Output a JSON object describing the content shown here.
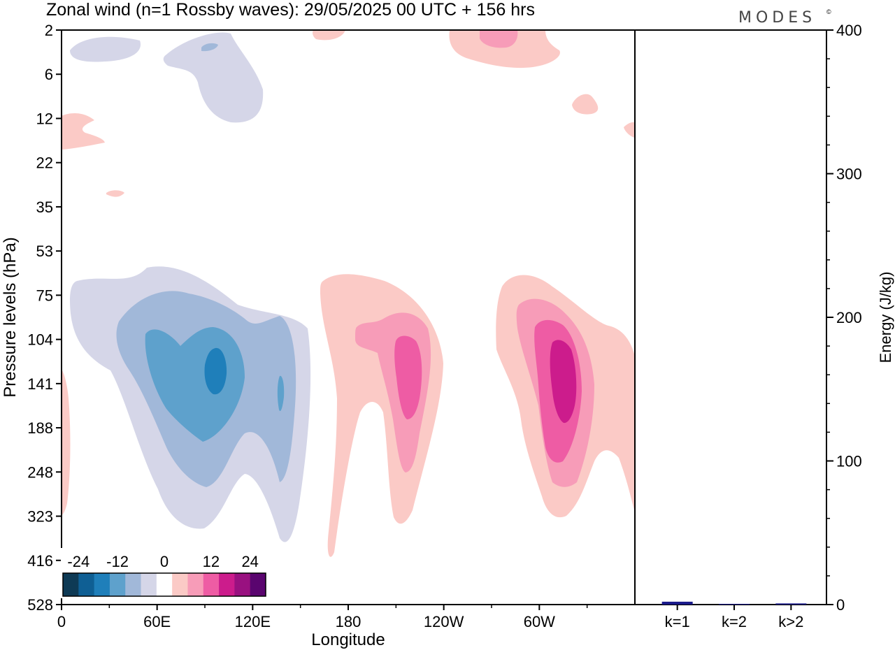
{
  "header": {
    "title": "Zonal wind (n=1 Rossby waves):  29/05/2025  00 UTC  + 156 hrs",
    "brand": "MODES",
    "brand_mark": "©"
  },
  "chart_data": [
    {
      "type": "contour",
      "xlabel": "Longitude",
      "ylabel": "Pressure levels (hPa)",
      "x_ticks": [
        "0",
        "60E",
        "120E",
        "180",
        "120W",
        "60W"
      ],
      "y_ticks": [
        "2",
        "6",
        "12",
        "22",
        "35",
        "53",
        "75",
        "104",
        "141",
        "188",
        "248",
        "323",
        "416",
        "528"
      ],
      "x_range": [
        0,
        360
      ],
      "colorbar": {
        "tick_labels": [
          "-24",
          "-12",
          "0",
          "12",
          "24"
        ],
        "colors": [
          "#0e3a55",
          "#0f5f94",
          "#1f7fba",
          "#5ea1cc",
          "#a1b8d9",
          "#d5d6e8",
          "#ffffff",
          "#fbcac6",
          "#f79cb8",
          "#ee5ca4",
          "#cc1c8c",
          "#991180",
          "#5a056f"
        ]
      },
      "features": [
        {
          "sign": "negative",
          "lon_center": 95,
          "p_center_hPa": 141,
          "max_abs_level": "≈20"
        },
        {
          "sign": "positive",
          "lon_center": 213,
          "p_center_hPa": 141,
          "max_abs_level": "≈12"
        },
        {
          "sign": "positive",
          "lon_center": 310,
          "p_center_hPa": 141,
          "max_abs_level": "≈16"
        },
        {
          "sign": "negative",
          "lon_center": 100,
          "p_center_hPa": 6,
          "max_abs_level": "≈8"
        },
        {
          "sign": "positive",
          "lon_center": 272,
          "p_center_hPa": 2,
          "max_abs_level": "≈8"
        }
      ]
    },
    {
      "type": "bar",
      "categories": [
        "k=1",
        "k=2",
        "k>2"
      ],
      "values": [
        2.0,
        0.5,
        0.8
      ],
      "ylabel": "Energy (J/kg)",
      "ylim": [
        0,
        400
      ],
      "y_ticks": [
        "0",
        "100",
        "200",
        "300",
        "400"
      ],
      "bar_color": "#1a1a8a"
    }
  ]
}
